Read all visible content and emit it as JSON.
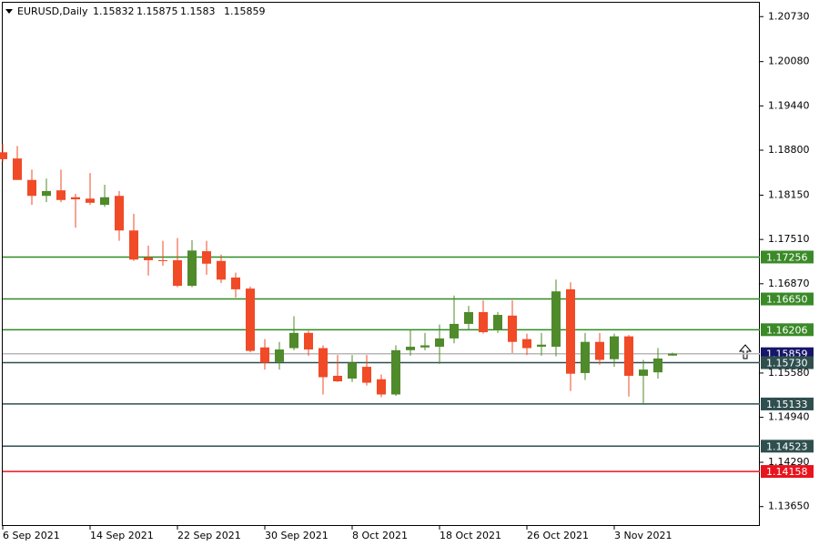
{
  "chart_data": {
    "type": "candlestick",
    "symbol": "EURUSD,Daily",
    "categories": [
      "6 Sep 2021",
      null,
      null,
      null,
      null,
      null,
      "14 Sep 2021",
      null,
      null,
      null,
      null,
      null,
      "22 Sep 2021",
      null,
      null,
      null,
      null,
      null,
      "30 Sep 2021",
      null,
      null,
      null,
      null,
      null,
      "8 Oct 2021",
      null,
      null,
      null,
      null,
      null,
      "18 Oct 2021",
      null,
      null,
      null,
      null,
      null,
      "26 Oct 2021",
      null,
      null,
      null,
      null,
      null,
      "3 Nov 2021",
      null,
      null,
      null,
      null
    ],
    "open": [
      1.1877,
      1.1868,
      1.1837,
      1.1814,
      1.1822,
      1.1812,
      1.181,
      1.1801,
      1.1814,
      1.1764,
      1.1725,
      1.1721,
      1.1721,
      1.1684,
      1.1734,
      1.172,
      1.1696,
      1.168,
      1.1595,
      1.1574,
      1.1594,
      1.1616,
      1.1594,
      1.1554,
      1.155,
      1.1567,
      1.1549,
      1.1527,
      1.1591,
      1.1595,
      1.1596,
      1.1608,
      1.1629,
      1.1646,
      1.162,
      1.1641,
      1.1607,
      1.1596,
      1.1596,
      1.1679,
      1.1558,
      1.1603,
      1.1578,
      1.1611,
      1.1554,
      1.1559,
      1.15832
    ],
    "high": [
      1.1889,
      1.1886,
      1.1852,
      1.1839,
      1.1852,
      1.1817,
      1.1847,
      1.183,
      1.1821,
      1.1788,
      1.1742,
      1.1749,
      1.1753,
      1.175,
      1.1749,
      1.1729,
      1.1703,
      1.1683,
      1.1607,
      1.1603,
      1.164,
      1.1619,
      1.1598,
      1.1584,
      1.1584,
      1.1584,
      1.1556,
      1.1598,
      1.162,
      1.1616,
      1.1628,
      1.167,
      1.1655,
      1.1663,
      1.1646,
      1.1663,
      1.1615,
      1.1616,
      1.1693,
      1.1689,
      1.1616,
      1.1616,
      1.1615,
      1.1613,
      1.1577,
      1.1594,
      1.15875
    ],
    "low": [
      1.1863,
      1.1837,
      1.1801,
      1.1805,
      1.1805,
      1.1768,
      1.1801,
      1.1798,
      1.1749,
      1.172,
      1.1699,
      1.1713,
      1.1682,
      1.1682,
      1.17,
      1.1688,
      1.1667,
      1.1588,
      1.1563,
      1.1563,
      1.1591,
      1.1583,
      1.1527,
      1.1545,
      1.1545,
      1.154,
      1.1523,
      1.1525,
      1.1583,
      1.1591,
      1.1571,
      1.1601,
      1.162,
      1.1615,
      1.1616,
      1.1587,
      1.1584,
      1.1583,
      1.1582,
      1.1532,
      1.1548,
      1.157,
      1.1567,
      1.1524,
      1.1512,
      1.155,
      1.1583
    ],
    "close": [
      1.1867,
      1.1837,
      1.1814,
      1.1821,
      1.1808,
      1.1809,
      1.1804,
      1.1812,
      1.1764,
      1.1722,
      1.1721,
      1.172,
      1.1684,
      1.1735,
      1.1716,
      1.1693,
      1.1679,
      1.159,
      1.1573,
      1.1592,
      1.1616,
      1.1592,
      1.1552,
      1.1546,
      1.1573,
      1.1544,
      1.1527,
      1.1591,
      1.1596,
      1.1598,
      1.1608,
      1.1629,
      1.1646,
      1.1617,
      1.1642,
      1.1603,
      1.1594,
      1.1599,
      1.1676,
      1.1557,
      1.1603,
      1.1577,
      1.1611,
      1.1554,
      1.1563,
      1.1579,
      1.15859
    ],
    "up_color": "#4f8a2b",
    "down_color": "#f04a27",
    "levels": [
      {
        "value": 1.17256,
        "line_color": "#2e8b22",
        "label_color": "#3a8a28"
      },
      {
        "value": 1.1665,
        "label": "1.16650",
        "line_color": "#2e8b22",
        "label_color": "#3a8a28"
      },
      {
        "value": 1.16206,
        "line_color": "#2e8b22",
        "label_color": "#3a8a28"
      },
      {
        "value": 1.15859,
        "line_color": "#b8b8b8",
        "label_color": "#16166a"
      },
      {
        "value": 1.1573,
        "label": "1.15730",
        "line_color": "#2f4f4f",
        "label_color": "#2f4f4f"
      },
      {
        "value": 1.15133,
        "line_color": "#2f4f4f",
        "label_color": "#2f4f4f"
      },
      {
        "value": 1.14523,
        "line_color": "#2f4f4f",
        "label_color": "#2f4f4f"
      },
      {
        "value": 1.14158,
        "line_color": "#e8141e",
        "label_color": "#e8141e"
      }
    ],
    "ylim": [
      1.1337,
      1.2097
    ],
    "yticks": [
      {
        "value": 1.2073,
        "label": "1.20730"
      },
      {
        "value": 1.2008,
        "label": "1.20080"
      },
      {
        "value": 1.1944,
        "label": "1.19440"
      },
      {
        "value": 1.188,
        "label": "1.18800"
      },
      {
        "value": 1.1815,
        "label": "1.18150"
      },
      {
        "value": 1.1751,
        "label": "1.17510"
      },
      {
        "value": 1.1687,
        "label": "1.16870"
      },
      {
        "value": 1.1558,
        "label": "1.15580"
      },
      {
        "value": 1.1494,
        "label": "1.14940"
      },
      {
        "value": 1.1429,
        "label": "1.14290"
      },
      {
        "value": 1.1365,
        "label": "1.13650"
      }
    ]
  }
}
